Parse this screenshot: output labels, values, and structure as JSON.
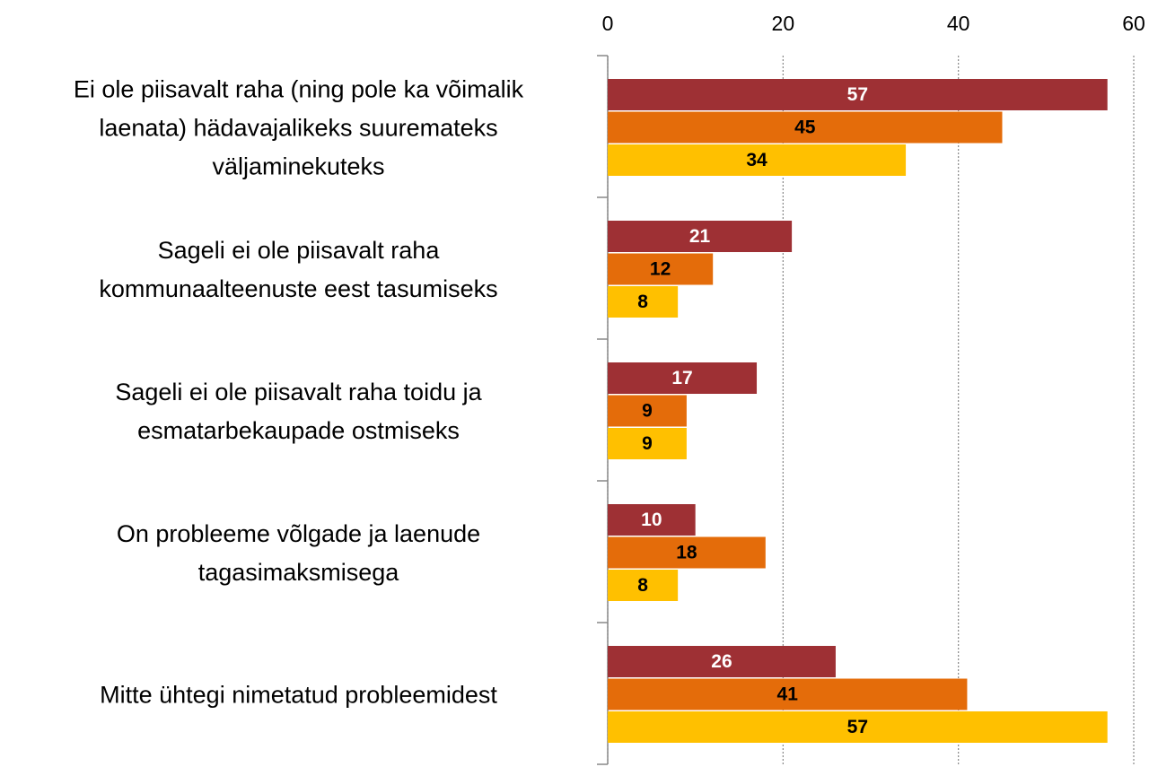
{
  "chart_data": {
    "type": "hbar",
    "categories": [
      "Ei ole piisavalt raha (ning pole ka võimalik\nlaenata) hädavajalikeks suuremateks\nväljaminekuteks",
      "Sageli ei ole piisavalt raha\nkommunaalteenuste eest tasumiseks",
      "Sageli ei ole piisavalt raha toidu ja\nesmatarbekaupade ostmiseks",
      "On probleeme võlgade ja laenude\ntagasimaksmisega",
      "Mitte ühtegi nimetatud probleemidest"
    ],
    "series": [
      {
        "color": "#9e3034",
        "values": [
          57,
          21,
          17,
          10,
          26
        ]
      },
      {
        "color": "#e46c0a",
        "values": [
          45,
          12,
          9,
          18,
          41
        ]
      },
      {
        "color": "#ffc000",
        "values": [
          34,
          8,
          9,
          8,
          57
        ]
      }
    ],
    "label_colors": [
      "#ffffff",
      "#000000",
      "#000000"
    ],
    "xlim": [
      0,
      60
    ],
    "xticks": [
      0,
      20,
      40,
      60
    ],
    "grid": true
  }
}
